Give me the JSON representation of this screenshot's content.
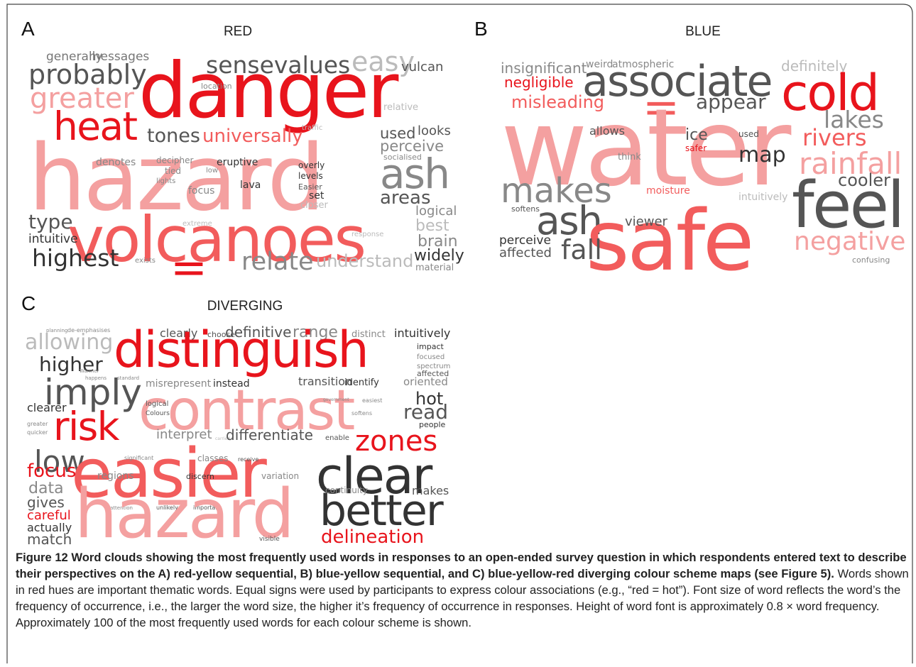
{
  "figure": {
    "panels": [
      {
        "label": "A",
        "title": "RED",
        "words": [
          {
            "text": "generally",
            "color": "#777"
          },
          {
            "text": "messages",
            "color": "#777"
          },
          {
            "text": "sensevalues",
            "color": "#555"
          },
          {
            "text": "easy",
            "color": "#bbb"
          },
          {
            "text": "vulcan",
            "color": "#555"
          },
          {
            "text": "probably",
            "color": "#555"
          },
          {
            "text": "danger",
            "color": "#e8141c"
          },
          {
            "text": "greater",
            "color": "#f4a0a0"
          },
          {
            "text": "location",
            "color": "#888"
          },
          {
            "text": "relative",
            "color": "#bbb"
          },
          {
            "text": "heat",
            "color": "#e8141c"
          },
          {
            "text": "tones",
            "color": "#555"
          },
          {
            "text": "universally",
            "color": "#f25c5c"
          },
          {
            "text": "traffic",
            "color": "#bbb"
          },
          {
            "text": "used",
            "color": "#555"
          },
          {
            "text": "looks",
            "color": "#555"
          },
          {
            "text": "perceive",
            "color": "#888"
          },
          {
            "text": "hazard",
            "color": "#f4a0a0"
          },
          {
            "text": "denotes",
            "color": "#888"
          },
          {
            "text": "decipher",
            "color": "#888"
          },
          {
            "text": "tied",
            "color": "#888"
          },
          {
            "text": "lights",
            "color": "#888"
          },
          {
            "text": "low",
            "color": "#888"
          },
          {
            "text": "eruptive",
            "color": "#333"
          },
          {
            "text": "overly",
            "color": "#333"
          },
          {
            "text": "levels",
            "color": "#333"
          },
          {
            "text": "socialised",
            "color": "#888"
          },
          {
            "text": "ash",
            "color": "#888"
          },
          {
            "text": "focus",
            "color": "#888"
          },
          {
            "text": "lava",
            "color": "#333"
          },
          {
            "text": "Easier",
            "color": "#555"
          },
          {
            "text": "set",
            "color": "#333"
          },
          {
            "text": "closer",
            "color": "#bbb"
          },
          {
            "text": "areas",
            "color": "#555"
          },
          {
            "text": "logical",
            "color": "#888"
          },
          {
            "text": "type",
            "color": "#555"
          },
          {
            "text": "volcanoes",
            "color": "#f25c5c"
          },
          {
            "text": "extreme",
            "color": "#bbb"
          },
          {
            "text": "best",
            "color": "#bbb"
          },
          {
            "text": "intuitive",
            "color": "#333"
          },
          {
            "text": "response",
            "color": "#bbb"
          },
          {
            "text": "brain",
            "color": "#888"
          },
          {
            "text": "highest",
            "color": "#333"
          },
          {
            "text": "exists",
            "color": "#888"
          },
          {
            "text": "relate",
            "color": "#888"
          },
          {
            "text": "understand",
            "color": "#bbb"
          },
          {
            "text": "widely",
            "color": "#333"
          },
          {
            "text": "material",
            "color": "#888"
          },
          {
            "text": "=",
            "color": "#e8141c"
          }
        ]
      },
      {
        "label": "B",
        "title": "BLUE",
        "words": [
          {
            "text": "insignificant",
            "color": "#888"
          },
          {
            "text": "weird",
            "color": "#888"
          },
          {
            "text": "atmospheric",
            "color": "#888"
          },
          {
            "text": "associate",
            "color": "#555"
          },
          {
            "text": "definitely",
            "color": "#bbb"
          },
          {
            "text": "negligible",
            "color": "#e8141c"
          },
          {
            "text": "cold",
            "color": "#e8141c"
          },
          {
            "text": "misleading",
            "color": "#f25c5c"
          },
          {
            "text": "=",
            "color": "#f25c5c"
          },
          {
            "text": "appear",
            "color": "#555"
          },
          {
            "text": "water",
            "color": "#f4a0a0"
          },
          {
            "text": "lakes",
            "color": "#888"
          },
          {
            "text": "allows",
            "color": "#555"
          },
          {
            "text": "ice",
            "color": "#555"
          },
          {
            "text": "used",
            "color": "#555"
          },
          {
            "text": "rivers",
            "color": "#f25c5c"
          },
          {
            "text": "safer",
            "color": "#e8141c"
          },
          {
            "text": "think",
            "color": "#888"
          },
          {
            "text": "map",
            "color": "#333"
          },
          {
            "text": "rainfall",
            "color": "#f4a0a0"
          },
          {
            "text": "cooler",
            "color": "#555"
          },
          {
            "text": "makes",
            "color": "#888"
          },
          {
            "text": "moisture",
            "color": "#f25c5c"
          },
          {
            "text": "intuitively",
            "color": "#bbb"
          },
          {
            "text": "feel",
            "color": "#555"
          },
          {
            "text": "softens",
            "color": "#555"
          },
          {
            "text": "ash",
            "color": "#555"
          },
          {
            "text": "safe",
            "color": "#f25c5c"
          },
          {
            "text": "viewer",
            "color": "#555"
          },
          {
            "text": "perceive",
            "color": "#333"
          },
          {
            "text": "affected",
            "color": "#555"
          },
          {
            "text": "fall",
            "color": "#555"
          },
          {
            "text": "negative",
            "color": "#f4a0a0"
          },
          {
            "text": "confusing",
            "color": "#888"
          }
        ]
      },
      {
        "label": "C",
        "title": "DIVERGING",
        "words": [
          {
            "text": "planning",
            "color": "#888"
          },
          {
            "text": "de-emphasises",
            "color": "#888"
          },
          {
            "text": "allowing",
            "color": "#bbb"
          },
          {
            "text": "clearly",
            "color": "#555"
          },
          {
            "text": "choose",
            "color": "#555"
          },
          {
            "text": "definitive",
            "color": "#555"
          },
          {
            "text": "range",
            "color": "#888"
          },
          {
            "text": "distinct",
            "color": "#888"
          },
          {
            "text": "intuitively",
            "color": "#333"
          },
          {
            "text": "distinguish",
            "color": "#e8141c"
          },
          {
            "text": "impact",
            "color": "#333"
          },
          {
            "text": "higher",
            "color": "#333"
          },
          {
            "text": "Warmer",
            "color": "#888"
          },
          {
            "text": "focused",
            "color": "#888"
          },
          {
            "text": "spectrum",
            "color": "#888"
          },
          {
            "text": "affected",
            "color": "#555"
          },
          {
            "text": "imply",
            "color": "#555"
          },
          {
            "text": "happens",
            "color": "#888"
          },
          {
            "text": "standard",
            "color": "#888"
          },
          {
            "text": "misrepresent",
            "color": "#888"
          },
          {
            "text": "instead",
            "color": "#333"
          },
          {
            "text": "transition",
            "color": "#555"
          },
          {
            "text": "identify",
            "color": "#333"
          },
          {
            "text": "oriented",
            "color": "#888"
          },
          {
            "text": "contrast",
            "color": "#f4a0a0"
          },
          {
            "text": "logical",
            "color": "#555"
          },
          {
            "text": "Colours",
            "color": "#555"
          },
          {
            "text": "government",
            "color": "#888"
          },
          {
            "text": "easiest",
            "color": "#888"
          },
          {
            "text": "hot",
            "color": "#333"
          },
          {
            "text": "clearer",
            "color": "#333"
          },
          {
            "text": "read",
            "color": "#555"
          },
          {
            "text": "softens",
            "color": "#888"
          },
          {
            "text": "greater",
            "color": "#888"
          },
          {
            "text": "quicker",
            "color": "#888"
          },
          {
            "text": "risk",
            "color": "#e8141c"
          },
          {
            "text": "people",
            "color": "#333"
          },
          {
            "text": "interpret",
            "color": "#888"
          },
          {
            "text": "carried",
            "color": "#bbb"
          },
          {
            "text": "differentiate",
            "color": "#555"
          },
          {
            "text": "enable",
            "color": "#555"
          },
          {
            "text": "zones",
            "color": "#e8141c"
          },
          {
            "text": "low",
            "color": "#555"
          },
          {
            "text": "easier",
            "color": "#f25c5c"
          },
          {
            "text": "significant",
            "color": "#888"
          },
          {
            "text": "classes",
            "color": "#888"
          },
          {
            "text": "receive",
            "color": "#555"
          },
          {
            "text": "clear",
            "color": "#333"
          },
          {
            "text": "focus",
            "color": "#e8141c"
          },
          {
            "text": "regions",
            "color": "#888"
          },
          {
            "text": "discern",
            "color": "#333"
          },
          {
            "text": "variation",
            "color": "#888"
          },
          {
            "text": "data",
            "color": "#888"
          },
          {
            "text": "continuity",
            "color": "#888"
          },
          {
            "text": "makes",
            "color": "#555"
          },
          {
            "text": "gives",
            "color": "#555"
          },
          {
            "text": "attention",
            "color": "#888"
          },
          {
            "text": "unlikely",
            "color": "#555"
          },
          {
            "text": "important",
            "color": "#555"
          },
          {
            "text": "hazard",
            "color": "#f4a0a0"
          },
          {
            "text": "better",
            "color": "#333"
          },
          {
            "text": "careful",
            "color": "#e8141c"
          },
          {
            "text": "actually",
            "color": "#333"
          },
          {
            "text": "match",
            "color": "#555"
          },
          {
            "text": "visible",
            "color": "#555"
          },
          {
            "text": "delineation",
            "color": "#e8141c"
          }
        ]
      }
    ],
    "caption": {
      "bold": "Figure 12 Word clouds showing the most frequently used words in responses to an open-ended survey question in which respondents entered text to describe their perspectives on the A) red-yellow sequential, B) blue-yellow sequential, and C) blue-yellow-red diverging colour scheme maps (see Figure 5).",
      "text": "Words shown in red hues are important thematic words. Equal signs were used by participants to express colour associations (e.g., “red = hot”). Font size of word reflects the word’s the frequency of occurrence, i.e., the larger the word size, the higher it’s frequency of occurrence in responses. Height of word font is approximately 0.8 × word frequency. Approximately 100 of the most frequently used words for each colour scheme is shown."
    }
  }
}
